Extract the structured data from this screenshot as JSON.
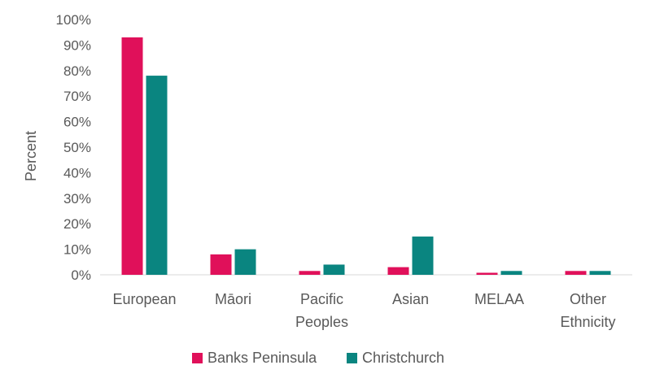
{
  "chart_data": {
    "type": "bar",
    "title": "",
    "xlabel": "",
    "ylabel": "Percent",
    "ylim": [
      0,
      100
    ],
    "yticks": [
      "0%",
      "10%",
      "20%",
      "30%",
      "40%",
      "50%",
      "60%",
      "70%",
      "80%",
      "90%",
      "100%"
    ],
    "categories": [
      [
        "European"
      ],
      [
        "Māori"
      ],
      [
        "Pacific",
        "Peoples"
      ],
      [
        "Asian"
      ],
      [
        "MELAA"
      ],
      [
        "Other",
        "Ethnicity"
      ]
    ],
    "series": [
      {
        "name": "Banks Peninsula",
        "color": "#e0105a",
        "values": [
          93,
          8,
          1.5,
          3,
          0.8,
          1.5
        ]
      },
      {
        "name": "Christchurch",
        "color": "#0a8580",
        "values": [
          78,
          10,
          4,
          15,
          1.5,
          1.5
        ]
      }
    ],
    "grid": false,
    "legend_position": "bottom"
  }
}
